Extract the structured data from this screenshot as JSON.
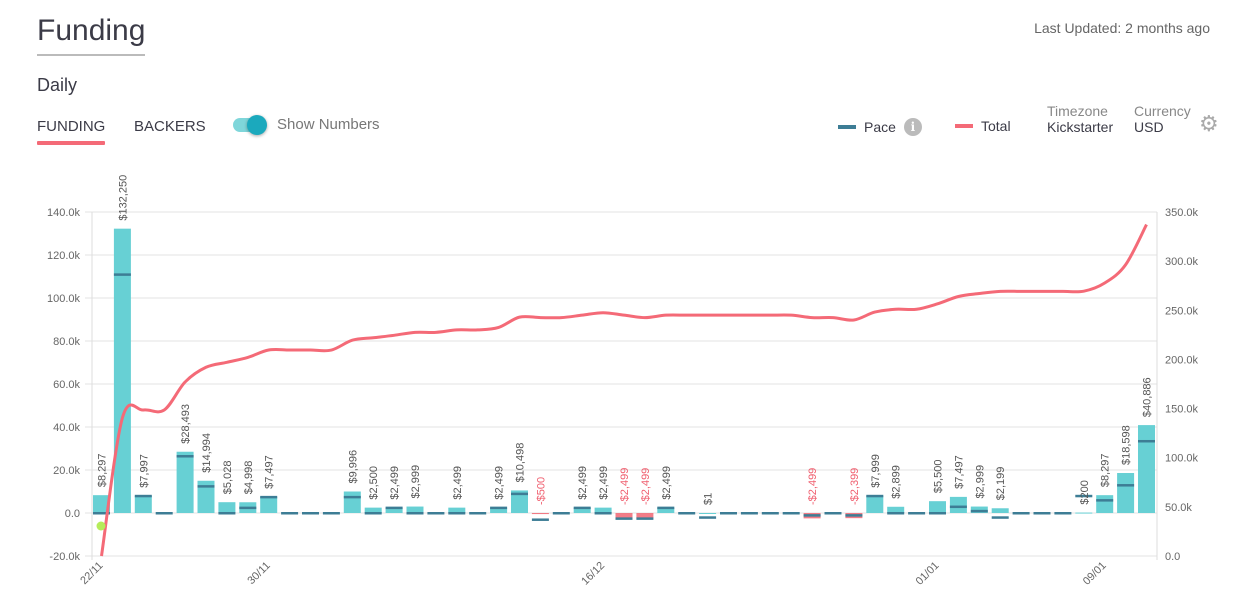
{
  "header": {
    "title": "Funding",
    "last_updated": "Last Updated: 2 months ago",
    "period": "Daily"
  },
  "tabs": [
    {
      "label": "FUNDING",
      "active": true
    },
    {
      "label": "BACKERS",
      "active": false
    }
  ],
  "toggle": {
    "label": "Show Numbers",
    "on": true
  },
  "legend": {
    "pace": "Pace",
    "total": "Total",
    "info_icon": "info-icon"
  },
  "settings": {
    "timezone_label": "Timezone",
    "timezone_value": "Kickstarter",
    "currency_label": "Currency",
    "currency_value": "USD",
    "icon": "gear-icon"
  },
  "colors": {
    "bar": "#67d0d4",
    "bar_negative": "#ef5b69",
    "pace": "#3d7d95",
    "total": "#f46a77",
    "accent": "#f46a77"
  },
  "chart_data": {
    "type": "bar",
    "x": [
      "22/11",
      "23/11",
      "24/11",
      "25/11",
      "26/11",
      "27/11",
      "28/11",
      "29/11",
      "30/11",
      "01/12",
      "02/12",
      "03/12",
      "04/12",
      "05/12",
      "06/12",
      "07/12",
      "08/12",
      "09/12",
      "10/12",
      "11/12",
      "12/12",
      "13/12",
      "14/12",
      "15/12",
      "16/12",
      "17/12",
      "18/12",
      "19/12",
      "20/12",
      "21/12",
      "22/12",
      "23/12",
      "24/12",
      "25/12",
      "26/12",
      "27/12",
      "28/12",
      "29/12",
      "30/12",
      "31/12",
      "01/01",
      "02/01",
      "03/01",
      "04/01",
      "05/01",
      "06/01",
      "07/01",
      "08/01",
      "09/01",
      "10/01",
      "11/01"
    ],
    "xtick_labels": [
      "22/11",
      "30/11",
      "16/12",
      "01/01",
      "09/01"
    ],
    "series": [
      {
        "name": "Daily",
        "axis": "left",
        "values": [
          8297,
          132250,
          7997,
          0,
          28493,
          14994,
          5028,
          4998,
          7497,
          0,
          0,
          0,
          9996,
          2500,
          2499,
          2999,
          0,
          2499,
          0,
          2499,
          10498,
          -500,
          0,
          2499,
          2499,
          -2499,
          -2499,
          2499,
          0,
          1,
          0,
          0,
          0,
          0,
          -2499,
          0,
          -2399,
          7999,
          2899,
          0,
          5500,
          7497,
          2999,
          2199,
          0,
          0,
          0,
          200,
          8297,
          18598,
          40886
        ]
      },
      {
        "name": "Pace",
        "axis": "left",
        "values": [
          0,
          111000,
          8000,
          0,
          26500,
          12500,
          0,
          2500,
          7500,
          0,
          0,
          0,
          7500,
          0,
          2500,
          0,
          0,
          0,
          0,
          2500,
          9000,
          -3000,
          0,
          2500,
          0,
          -2500,
          -2500,
          2500,
          0,
          -2000,
          0,
          0,
          0,
          0,
          -1000,
          0,
          -1000,
          8000,
          0,
          0,
          0,
          3000,
          1000,
          -2000,
          0,
          0,
          0,
          8000,
          6000,
          13000,
          33500
        ]
      },
      {
        "name": "Total",
        "axis": "right",
        "values": [
          0,
          140547,
          148544,
          148544,
          177037,
          192031,
          197059,
          202057,
          209554,
          209554,
          209554,
          209554,
          219550,
          222050,
          224549,
          227548,
          227548,
          230047,
          230047,
          232546,
          243044,
          242544,
          242544,
          245043,
          247542,
          245043,
          242544,
          245043,
          245043,
          245044,
          245044,
          245044,
          245044,
          245044,
          242545,
          242545,
          240146,
          248145,
          251044,
          251044,
          256544,
          264041,
          267040,
          269239,
          269239,
          269239,
          269239,
          269439,
          277736,
          296334,
          337220
        ]
      }
    ],
    "bar_labels": [
      "$8,297",
      "$132,250",
      "$7,997",
      "",
      "$28,493",
      "$14,994",
      "$5,028",
      "$4,998",
      "$7,497",
      "",
      "",
      "",
      "$9,996",
      "$2,500",
      "$2,499",
      "$2,999",
      "",
      "$2,499",
      "",
      "$2,499",
      "$10,498",
      "-$500",
      "",
      "$2,499",
      "$2,499",
      "-$2,499",
      "-$2,499",
      "$2,499",
      "",
      "$1",
      "",
      "",
      "",
      "",
      "-$2,499",
      "",
      "-$2,399",
      "$7,999",
      "$2,899",
      "",
      "$5,500",
      "$7,497",
      "$2,999",
      "$2,199",
      "",
      "",
      "",
      "$200",
      "$8,297",
      "$18,598",
      "$40,886"
    ],
    "ylim_left": [
      -20000,
      140000
    ],
    "ylim_right": [
      0,
      350000
    ],
    "yticks_left": [
      "-20.0k",
      "0.0",
      "20.0k",
      "40.0k",
      "60.0k",
      "80.0k",
      "100.0k",
      "120.0k",
      "140.0k"
    ],
    "yticks_left_values": [
      -20000,
      0,
      20000,
      40000,
      60000,
      80000,
      100000,
      120000,
      140000
    ],
    "yticks_right": [
      "0.0",
      "50.0k",
      "100.0k",
      "150.0k",
      "200.0k",
      "250.0k",
      "300.0k",
      "350.0k"
    ],
    "yticks_right_values": [
      0,
      50000,
      100000,
      150000,
      200000,
      250000,
      300000,
      350000
    ],
    "grid": true,
    "legend_position": "top-right"
  }
}
